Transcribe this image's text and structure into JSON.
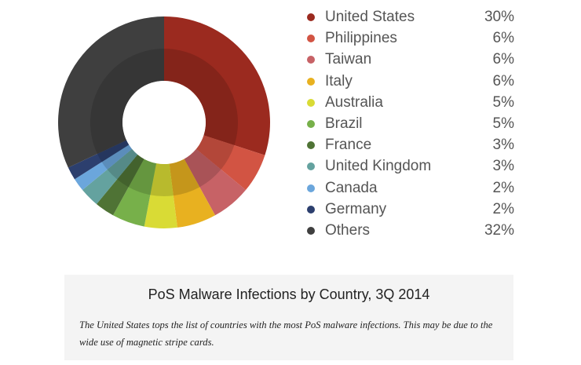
{
  "chart_data": {
    "type": "pie",
    "title": "PoS Malware Infections by Country, 3Q 2014",
    "categories": [
      "United States",
      "Philippines",
      "Taiwan",
      "Italy",
      "Australia",
      "Brazil",
      "France",
      "United Kingdom",
      "Canada",
      "Germany",
      "Others"
    ],
    "values": [
      30,
      6,
      6,
      6,
      5,
      5,
      3,
      3,
      2,
      2,
      32
    ],
    "value_labels": [
      "30%",
      "6%",
      "6%",
      "6%",
      "5%",
      "5%",
      "3%",
      "3%",
      "2%",
      "2%",
      "32%"
    ],
    "colors": [
      "#9b2a1f",
      "#d25443",
      "#c76266",
      "#e8b120",
      "#d9db35",
      "#77b04a",
      "#4f7335",
      "#64a29f",
      "#6ba6dc",
      "#2c3f6e",
      "#3f3f3f"
    ],
    "legend_position": "right"
  },
  "caption": {
    "title": "PoS Malware Infections by Country, 3Q 2014",
    "text": "The United States tops the list of countries with the most PoS malware infections. This may be due to the wide use of magnetic stripe cards."
  }
}
